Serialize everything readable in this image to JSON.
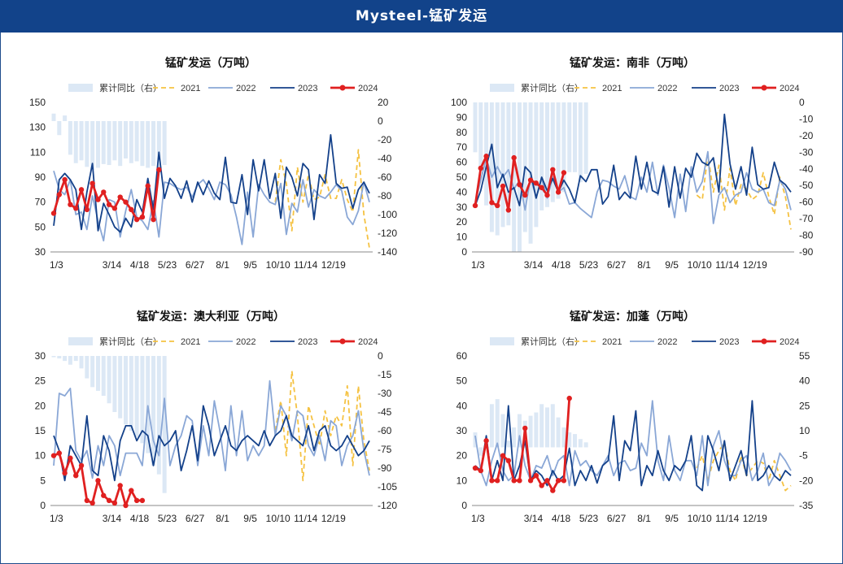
{
  "page": {
    "title": "Mysteel-锰矿发运"
  },
  "legend_labels": [
    "累计同比（右）",
    "2021",
    "2022",
    "2023",
    "2024"
  ],
  "colors": {
    "header": "#12438a",
    "bar": "#dce8f5",
    "s2021": "#f5c242",
    "s2022": "#8aa7d6",
    "s2023": "#14418a",
    "s2024": "#e02020"
  },
  "chart_data": [
    {
      "type": "line",
      "title": "锰矿发运（万吨）",
      "x_ticks": [
        "1/3",
        "3/14",
        "4/18",
        "5/23",
        "6/27",
        "8/1",
        "9/5",
        "10/10",
        "11/14",
        "12/19"
      ],
      "ylim": [
        30,
        150
      ],
      "y_ticks": [
        30,
        50,
        70,
        90,
        110,
        130,
        150
      ],
      "y2lim": [
        -140,
        20
      ],
      "y2_ticks": [
        -140,
        -120,
        -100,
        -80,
        -60,
        -40,
        -20,
        0,
        20
      ],
      "bars": [
        8,
        -15,
        6,
        -36,
        -45,
        -42,
        -49,
        -52,
        -50,
        -46,
        -47,
        -42,
        -48,
        -40,
        -45,
        -43,
        -48,
        -50,
        -48,
        -51,
        -47
      ],
      "series": [
        {
          "name": "2021",
          "values": [
            null,
            null,
            null,
            null,
            null,
            null,
            null,
            null,
            null,
            null,
            null,
            null,
            null,
            null,
            null,
            null,
            null,
            null,
            null,
            null,
            null,
            null,
            null,
            null,
            null,
            null,
            null,
            null,
            null,
            null,
            null,
            null,
            null,
            null,
            null,
            null,
            null,
            null,
            null,
            null,
            70,
            104,
            85,
            47,
            98,
            70,
            92,
            72,
            74,
            92,
            73,
            73,
            88,
            72,
            62,
            112,
            60,
            33
          ]
        },
        {
          "name": "2022",
          "values": [
            95,
            80,
            76,
            88,
            60,
            62,
            48,
            75,
            55,
            39,
            72,
            70,
            42,
            63,
            80,
            58,
            55,
            48,
            71,
            42,
            86,
            85,
            82,
            80,
            82,
            74,
            84,
            88,
            81,
            72,
            86,
            84,
            76,
            58,
            36,
            78,
            42,
            84,
            76,
            70,
            68,
            85,
            44,
            69,
            62,
            88,
            66,
            80,
            75,
            73,
            78,
            84,
            79,
            58,
            52,
            63,
            86,
            70
          ]
        },
        {
          "name": "2023",
          "values": [
            51,
            88,
            93,
            88,
            80,
            48,
            78,
            101,
            47,
            69,
            60,
            50,
            46,
            57,
            50,
            72,
            62,
            89,
            64,
            110,
            73,
            89,
            83,
            73,
            87,
            70,
            86,
            76,
            87,
            77,
            72,
            106,
            70,
            69,
            92,
            60,
            104,
            79,
            104,
            73,
            93,
            57,
            98,
            90,
            75,
            101,
            96,
            56,
            92,
            85,
            124,
            85,
            81,
            82,
            65,
            80,
            86,
            77
          ]
        },
        {
          "name": "2024",
          "values": [
            61,
            76,
            88,
            68,
            65,
            80,
            64,
            85,
            72,
            78,
            68,
            65,
            74,
            70,
            64,
            56,
            58,
            83,
            56,
            96
          ]
        }
      ]
    },
    {
      "type": "line",
      "title": "锰矿发运：南非（万吨）",
      "x_ticks": [
        "1/3",
        "3/14",
        "4/18",
        "5/23",
        "6/27",
        "8/1",
        "9/5",
        "10/10",
        "11/14",
        "12/19"
      ],
      "ylim": [
        0,
        100
      ],
      "y_ticks": [
        0,
        10,
        20,
        30,
        40,
        50,
        60,
        70,
        80,
        90,
        100
      ],
      "y2lim": [
        -90,
        0
      ],
      "y2_ticks": [
        -90,
        -80,
        -70,
        -60,
        -50,
        -40,
        -30,
        -20,
        -10,
        0
      ],
      "bars": [
        -30,
        -40,
        -62,
        -78,
        -80,
        -75,
        -74,
        -90,
        -90,
        -78,
        -85,
        -75,
        -65,
        -63,
        -60,
        -58,
        -54,
        -42,
        -42,
        -48,
        -43
      ],
      "series": [
        {
          "name": "2021",
          "values": [
            null,
            null,
            null,
            null,
            null,
            null,
            null,
            null,
            null,
            null,
            null,
            null,
            null,
            null,
            null,
            null,
            null,
            null,
            null,
            null,
            null,
            null,
            null,
            null,
            null,
            null,
            null,
            null,
            null,
            null,
            null,
            null,
            null,
            null,
            null,
            null,
            null,
            null,
            null,
            null,
            38,
            35,
            65,
            40,
            58,
            28,
            56,
            31,
            45,
            42,
            35,
            38,
            53,
            37,
            25,
            50,
            37,
            15
          ]
        },
        {
          "name": "2022",
          "values": [
            33,
            48,
            63,
            50,
            57,
            50,
            55,
            42,
            48,
            28,
            50,
            36,
            49,
            36,
            50,
            40,
            43,
            32,
            33,
            29,
            26,
            23,
            40,
            48,
            47,
            44,
            42,
            51,
            37,
            35,
            50,
            40,
            60,
            38,
            58,
            43,
            23,
            52,
            27,
            57,
            40,
            47,
            67,
            19,
            38,
            43,
            33,
            38,
            40,
            53,
            42,
            40,
            42,
            33,
            31,
            48,
            42,
            28
          ]
        },
        {
          "name": "2023",
          "values": [
            31,
            41,
            57,
            72,
            43,
            52,
            40,
            43,
            31,
            57,
            53,
            36,
            50,
            41,
            49,
            40,
            48,
            42,
            33,
            51,
            47,
            55,
            55,
            32,
            37,
            58,
            35,
            40,
            36,
            64,
            42,
            60,
            41,
            39,
            57,
            30,
            57,
            36,
            56,
            50,
            66,
            60,
            58,
            63,
            40,
            92,
            59,
            42,
            57,
            38,
            70,
            45,
            42,
            43,
            60,
            48,
            45,
            40
          ]
        },
        {
          "name": "2024",
          "values": [
            31,
            56,
            64,
            33,
            31,
            44,
            28,
            63,
            45,
            38,
            48,
            46,
            43,
            38,
            55,
            40,
            53
          ]
        }
      ]
    },
    {
      "type": "line",
      "title": "锰矿发运：澳大利亚（万吨）",
      "x_ticks": [
        "1/3",
        "3/14",
        "4/18",
        "5/23",
        "6/27",
        "8/1",
        "9/5",
        "10/10",
        "11/14",
        "12/19"
      ],
      "ylim": [
        0,
        30
      ],
      "y_ticks": [
        0,
        5,
        10,
        15,
        20,
        25,
        30
      ],
      "y2lim": [
        -120,
        0
      ],
      "y2_ticks": [
        -120,
        -105,
        -90,
        -75,
        -60,
        -45,
        -30,
        -15,
        0
      ],
      "bars": [
        -1,
        -2,
        -4,
        -7,
        -4,
        -10,
        -18,
        -25,
        -28,
        -32,
        -38,
        -45,
        -50,
        -55,
        -60,
        -65,
        -70,
        -78,
        -88,
        -95,
        -110
      ],
      "series": [
        {
          "name": "2021",
          "values": [
            null,
            null,
            null,
            null,
            null,
            null,
            null,
            null,
            null,
            null,
            null,
            null,
            null,
            null,
            null,
            null,
            null,
            null,
            null,
            null,
            null,
            null,
            null,
            null,
            null,
            null,
            null,
            null,
            null,
            null,
            null,
            null,
            null,
            null,
            null,
            null,
            null,
            null,
            null,
            null,
            15,
            21,
            10,
            27,
            18,
            5,
            20,
            16,
            12,
            19,
            14,
            18,
            16,
            24,
            8,
            24,
            13,
            7
          ]
        },
        {
          "name": "2022",
          "values": [
            8,
            22.5,
            22,
            23.5,
            11,
            9,
            11,
            5.5,
            12,
            8,
            14,
            12,
            6,
            10.5,
            10.5,
            10.5,
            8,
            20,
            13,
            10,
            21.5,
            8,
            12,
            14,
            18,
            17,
            8,
            16,
            10,
            21,
            15,
            7,
            20,
            10,
            19,
            9,
            12,
            10,
            12,
            25,
            14,
            20,
            18,
            13,
            19,
            18,
            12,
            10,
            14,
            9,
            17,
            16,
            8,
            12,
            14,
            19,
            11,
            6
          ]
        },
        {
          "name": "2023",
          "values": [
            14,
            11,
            5,
            12,
            10,
            8,
            18,
            7,
            6,
            14,
            11,
            5,
            13,
            16,
            16,
            13,
            15,
            14,
            8,
            14,
            12,
            13,
            15,
            7,
            11,
            16,
            9,
            20,
            16,
            10,
            13,
            16,
            12,
            11,
            13,
            14,
            13,
            12,
            15,
            12,
            14,
            15,
            18,
            14,
            13,
            12,
            16,
            11,
            15,
            16,
            12,
            11,
            12,
            14,
            12,
            10,
            11,
            13
          ]
        },
        {
          "name": "2024",
          "values": [
            10,
            10.5,
            6.5,
            9.5,
            6,
            8,
            1,
            0.5,
            5,
            2,
            1,
            0.5,
            4,
            0,
            3,
            1,
            1
          ]
        }
      ]
    },
    {
      "type": "line",
      "title": "锰矿发运：加蓬（万吨）",
      "x_ticks": [
        "1/3",
        "3/14",
        "4/18",
        "5/23",
        "6/27",
        "8/1",
        "9/5",
        "10/10",
        "11/14",
        "12/19"
      ],
      "ylim": [
        0,
        60
      ],
      "y_ticks": [
        0,
        10,
        20,
        30,
        40,
        50,
        60
      ],
      "y2lim": [
        -35,
        55
      ],
      "y2_ticks": [
        -35,
        -20,
        -5,
        10,
        25,
        40,
        55
      ],
      "bars": [
        9,
        -5,
        0,
        26,
        29,
        20,
        4,
        12,
        20,
        16,
        19,
        21,
        26,
        24,
        26,
        18,
        12,
        9,
        8,
        5,
        3
      ],
      "series": [
        {
          "name": "2021",
          "values": [
            null,
            null,
            null,
            null,
            null,
            null,
            null,
            null,
            null,
            null,
            null,
            null,
            null,
            null,
            null,
            null,
            null,
            null,
            null,
            null,
            null,
            null,
            null,
            null,
            null,
            null,
            null,
            null,
            null,
            null,
            null,
            null,
            null,
            null,
            null,
            null,
            null,
            null,
            null,
            null,
            15,
            20,
            10,
            18,
            22,
            25,
            14,
            10,
            20,
            12,
            15,
            18,
            17,
            10,
            18,
            12,
            6,
            8
          ]
        },
        {
          "name": "2022",
          "values": [
            28,
            14,
            8,
            18,
            25,
            14,
            10,
            12,
            28,
            16,
            10,
            16,
            15,
            20,
            12,
            18,
            20,
            8,
            22,
            16,
            18,
            14,
            12,
            16,
            20,
            12,
            17,
            18,
            14,
            15,
            25,
            20,
            42,
            18,
            10,
            28,
            14,
            10,
            18,
            18,
            12,
            28,
            8,
            24,
            30,
            18,
            12,
            12,
            18,
            20,
            10,
            14,
            21,
            8,
            12,
            21,
            18,
            14
          ]
        },
        {
          "name": "2023",
          "values": [
            16,
            14,
            28,
            10,
            18,
            10,
            40,
            10,
            16,
            26,
            10,
            14,
            12,
            8,
            14,
            10,
            12,
            23,
            8,
            14,
            10,
            16,
            9,
            16,
            18,
            36,
            10,
            26,
            22,
            38,
            8,
            16,
            12,
            22,
            14,
            10,
            16,
            14,
            18,
            28,
            8,
            6,
            28,
            22,
            14,
            26,
            10,
            16,
            22,
            12,
            42,
            10,
            12,
            16,
            12,
            10,
            14,
            12
          ]
        },
        {
          "name": "2024",
          "values": [
            15,
            14,
            26,
            10,
            10,
            20,
            18,
            10,
            10,
            31,
            10,
            12,
            8,
            10,
            6,
            10,
            10,
            43
          ]
        }
      ]
    }
  ]
}
